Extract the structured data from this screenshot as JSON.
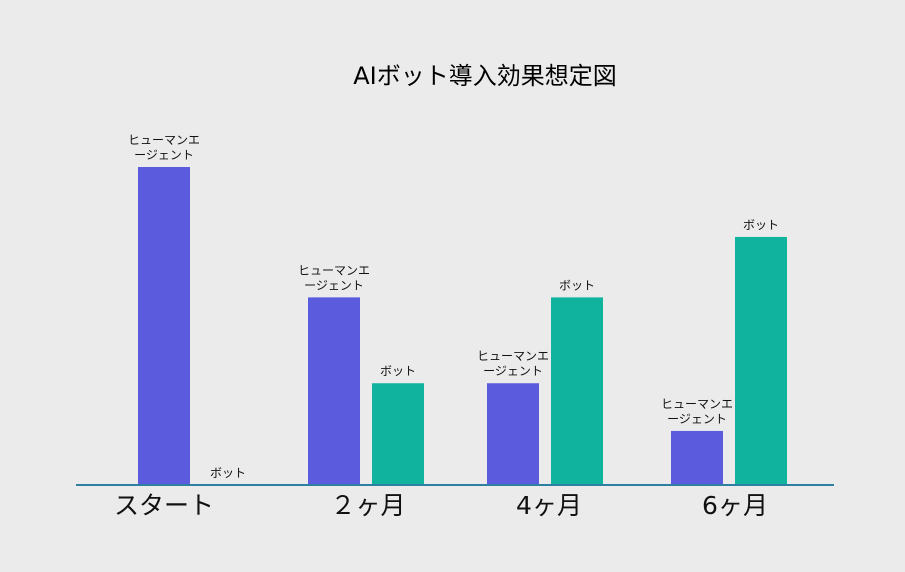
{
  "chart_data": {
    "type": "bar",
    "title": "AIボット導入効果想定図",
    "categories": [
      "スタート",
      "２ヶ月",
      "4ヶ月",
      "6ヶ月"
    ],
    "series": [
      {
        "values": [
          100,
          59,
          32,
          17
        ],
        "bar_labels": [
          "ヒューマンエ\nージェント",
          "ヒューマンエ\nージェント",
          "ヒューマンエ\nージェント",
          "ヒューマンエ\nージェント"
        ]
      },
      {
        "values": [
          0,
          32,
          59,
          78
        ],
        "bar_labels": [
          "ボット",
          "ボット",
          "ボット",
          "ボット"
        ]
      }
    ],
    "xlabel": "",
    "ylabel": "",
    "ylim": [
      0,
      100
    ],
    "grid": false,
    "legend": "none",
    "colors": [
      "#5b5bde",
      "#0fb39e"
    ],
    "axis_color": "#2f7fa0"
  }
}
